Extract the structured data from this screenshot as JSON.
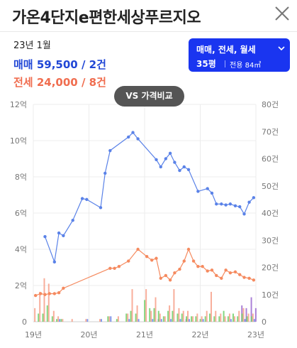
{
  "header": {
    "title": "가온4단지e편한세상푸르지오"
  },
  "summary": {
    "date": "23년 1월",
    "trade_label": "매매",
    "trade_value": "59,500 / 2건",
    "jeonse_label": "전세",
    "jeonse_value": "24,000 / 8건"
  },
  "filter": {
    "types": "매매, 전세, 월세",
    "area": "35평",
    "detail": "전용 84㎡"
  },
  "compare_button": "VS 가격비교",
  "colors": {
    "trade": "#5a82e8",
    "jeonse": "#f58a5f",
    "filter_bg": "#1a35f0",
    "vol_green": "#6fd06a",
    "vol_salmon": "#f7a08a",
    "vol_blue": "#6b8cf0",
    "vol_purple": "#9b6bd0"
  },
  "chart_data": {
    "type": "line",
    "xlim": [
      2019.0,
      2023.0
    ],
    "x_ticks": [
      "19년",
      "20년",
      "21년",
      "22년",
      "23년"
    ],
    "ylim_left": [
      0,
      12
    ],
    "y_left_ticks": [
      "0",
      "2억",
      "4억",
      "6억",
      "8억",
      "10억",
      "12억"
    ],
    "ylim_right": [
      0,
      80
    ],
    "y_right_ticks": [
      "0",
      "10건",
      "20건",
      "30건",
      "40건",
      "50건",
      "60건",
      "70건",
      "80건"
    ],
    "grid": true,
    "series": [
      {
        "key": "trade",
        "x": [
          2019.21,
          2019.38,
          2019.46,
          2019.54,
          2019.71,
          2019.88,
          2019.96,
          2020.21,
          2020.29,
          2020.38,
          2020.71,
          2020.79,
          2020.88,
          2021.21,
          2021.29,
          2021.38,
          2021.46,
          2021.54,
          2021.63,
          2021.71,
          2021.79,
          2021.96,
          2022.13,
          2022.21,
          2022.29,
          2022.38,
          2022.46,
          2022.54,
          2022.63,
          2022.71,
          2022.79,
          2022.88,
          2022.96
        ],
        "y": [
          4.7,
          3.3,
          4.9,
          4.75,
          5.6,
          6.8,
          6.75,
          6.3,
          8.2,
          9.45,
          10.2,
          10.45,
          10.1,
          8.95,
          8.55,
          9.0,
          9.3,
          8.8,
          8.35,
          8.55,
          8.4,
          7.2,
          7.35,
          7.1,
          6.5,
          6.5,
          6.45,
          6.5,
          6.4,
          6.35,
          5.95,
          6.6,
          6.85
        ]
      },
      {
        "key": "jeonse",
        "x": [
          2019.04,
          2019.13,
          2019.21,
          2019.29,
          2019.38,
          2019.46,
          2019.54,
          2020.38,
          2020.46,
          2020.54,
          2020.71,
          2020.88,
          2021.04,
          2021.13,
          2021.21,
          2021.29,
          2021.38,
          2021.46,
          2021.54,
          2021.63,
          2021.71,
          2021.79,
          2021.88,
          2021.96,
          2022.04,
          2022.13,
          2022.21,
          2022.29,
          2022.38,
          2022.46,
          2022.54,
          2022.63,
          2022.71,
          2022.79,
          2022.88,
          2022.96
        ],
        "y": [
          1.45,
          1.55,
          1.5,
          1.55,
          1.55,
          1.6,
          1.85,
          2.95,
          2.95,
          3.05,
          3.35,
          4.0,
          3.6,
          3.4,
          3.5,
          2.4,
          2.55,
          2.3,
          2.7,
          2.9,
          3.35,
          4.0,
          3.35,
          3.05,
          3.05,
          2.8,
          2.85,
          2.55,
          2.4,
          2.85,
          2.7,
          2.75,
          2.6,
          2.45,
          2.4,
          2.3
        ]
      }
    ],
    "volume_bars": [
      {
        "x": 2019.04,
        "values": [
          0,
          5,
          0,
          0
        ]
      },
      {
        "x": 2019.13,
        "values": [
          3,
          11,
          0,
          0
        ]
      },
      {
        "x": 2019.21,
        "values": [
          3,
          16,
          0,
          0
        ]
      },
      {
        "x": 2019.29,
        "values": [
          6,
          14,
          0,
          0
        ]
      },
      {
        "x": 2019.38,
        "values": [
          2,
          4,
          0,
          0
        ]
      },
      {
        "x": 2019.46,
        "values": [
          1,
          2,
          1,
          0
        ]
      },
      {
        "x": 2019.54,
        "values": [
          1,
          1,
          0,
          0
        ]
      },
      {
        "x": 2019.71,
        "values": [
          0,
          1,
          0,
          0
        ]
      },
      {
        "x": 2019.96,
        "values": [
          0,
          1,
          1,
          0
        ]
      },
      {
        "x": 2020.21,
        "values": [
          0,
          1,
          1,
          0
        ]
      },
      {
        "x": 2020.38,
        "values": [
          2,
          2,
          2,
          0
        ]
      },
      {
        "x": 2020.54,
        "values": [
          1,
          2,
          0,
          0
        ]
      },
      {
        "x": 2020.71,
        "values": [
          3,
          3,
          1,
          0
        ]
      },
      {
        "x": 2020.79,
        "values": [
          4,
          12,
          0,
          0
        ]
      },
      {
        "x": 2020.88,
        "values": [
          3,
          6,
          1,
          0
        ]
      },
      {
        "x": 2021.04,
        "values": [
          8,
          12,
          0,
          0
        ]
      },
      {
        "x": 2021.13,
        "values": [
          5,
          4,
          1,
          0
        ]
      },
      {
        "x": 2021.21,
        "values": [
          5,
          9,
          0,
          1
        ]
      },
      {
        "x": 2021.29,
        "values": [
          4,
          3,
          1,
          0
        ]
      },
      {
        "x": 2021.38,
        "values": [
          2,
          2,
          0,
          0
        ]
      },
      {
        "x": 2021.46,
        "values": [
          4,
          6,
          1,
          0
        ]
      },
      {
        "x": 2021.54,
        "values": [
          4,
          12,
          0,
          0
        ]
      },
      {
        "x": 2021.63,
        "values": [
          3,
          5,
          1,
          0
        ]
      },
      {
        "x": 2021.71,
        "values": [
          3,
          4,
          0,
          1
        ]
      },
      {
        "x": 2021.79,
        "values": [
          2,
          4,
          1,
          0
        ]
      },
      {
        "x": 2021.88,
        "values": [
          2,
          2,
          0,
          0
        ]
      },
      {
        "x": 2021.96,
        "values": [
          2,
          3,
          0,
          0
        ]
      },
      {
        "x": 2022.04,
        "values": [
          1,
          2,
          1,
          0
        ]
      },
      {
        "x": 2022.13,
        "values": [
          2,
          4,
          0,
          0
        ]
      },
      {
        "x": 2022.21,
        "values": [
          3,
          11,
          0,
          0
        ]
      },
      {
        "x": 2022.29,
        "values": [
          2,
          4,
          0,
          0
        ]
      },
      {
        "x": 2022.38,
        "values": [
          2,
          3,
          0,
          0
        ]
      },
      {
        "x": 2022.46,
        "values": [
          4,
          2,
          0,
          0
        ]
      },
      {
        "x": 2022.54,
        "values": [
          2,
          3,
          1,
          0
        ]
      },
      {
        "x": 2022.63,
        "values": [
          3,
          2,
          0,
          0
        ]
      },
      {
        "x": 2022.71,
        "values": [
          2,
          4,
          0,
          6
        ]
      },
      {
        "x": 2022.79,
        "values": [
          3,
          5,
          1,
          5
        ]
      },
      {
        "x": 2022.88,
        "values": [
          2,
          3,
          0,
          9
        ]
      },
      {
        "x": 2022.96,
        "values": [
          2,
          3,
          1,
          5
        ]
      }
    ]
  }
}
